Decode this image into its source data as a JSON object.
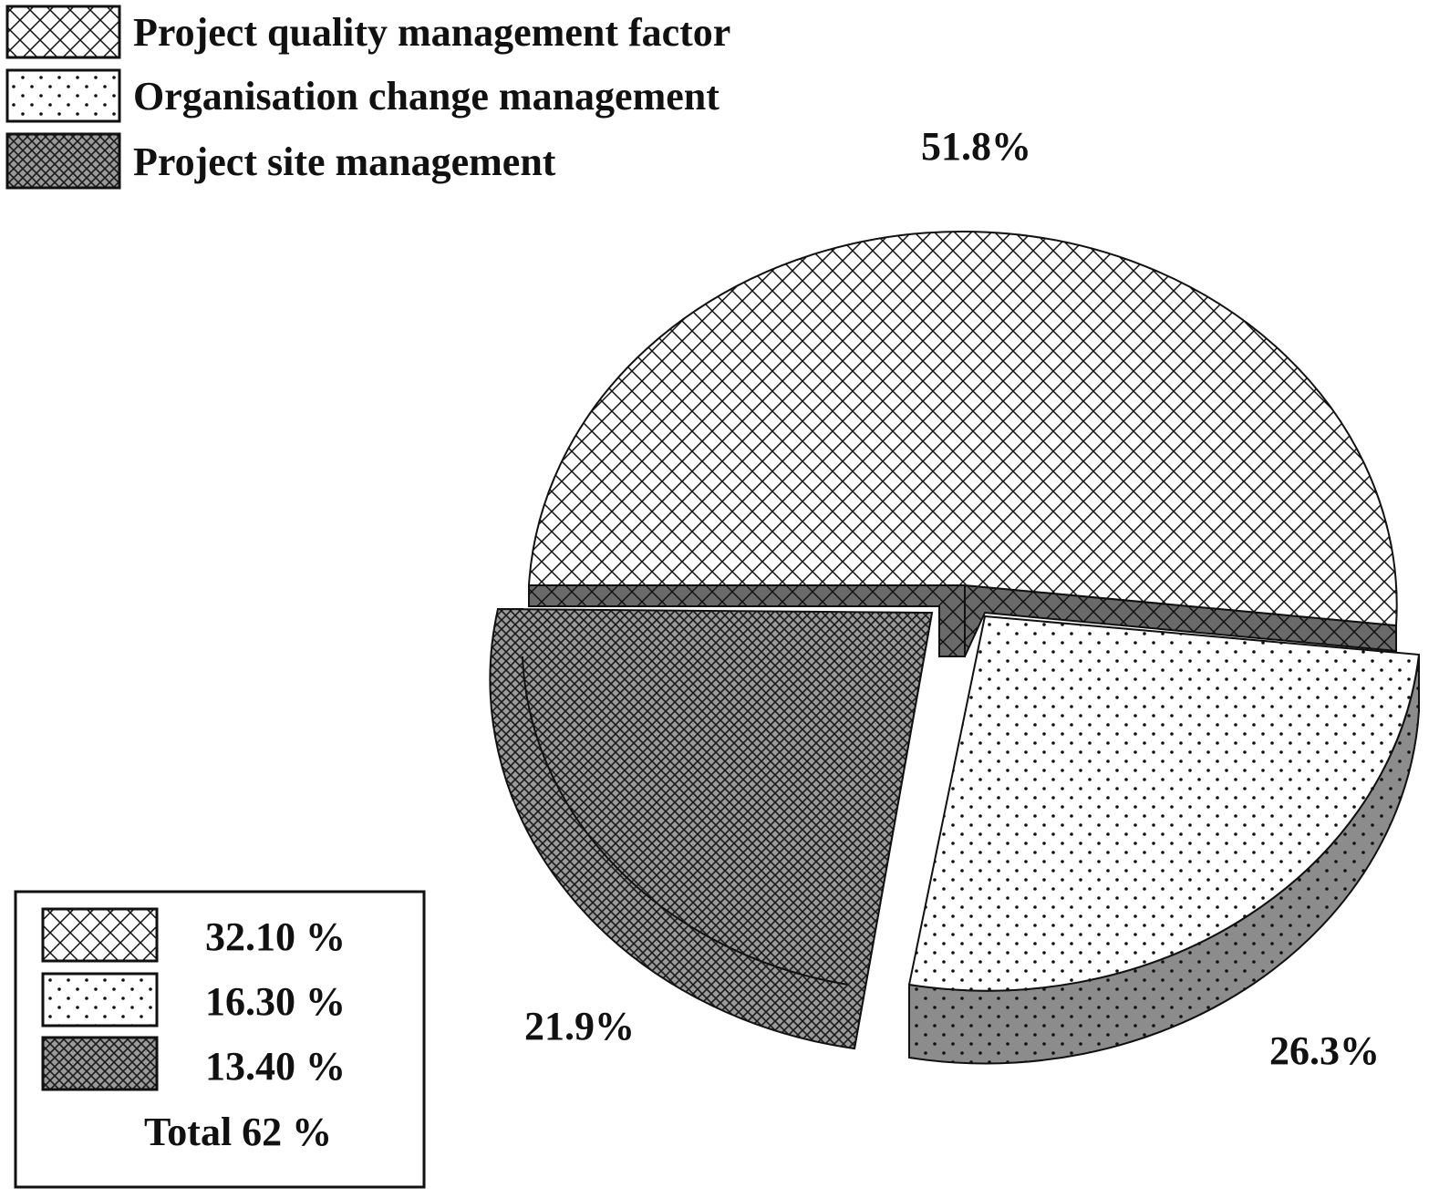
{
  "chart_data": {
    "type": "pie",
    "title": "",
    "slices": [
      {
        "label": "Project quality management factor",
        "value": 51.8,
        "value_label": "51.8%",
        "pattern": "crosshatch",
        "box_value": "32.10 %"
      },
      {
        "label": "Organisation change management",
        "value": 26.3,
        "value_label": "26.3%",
        "pattern": "dots",
        "box_value": "16.30 %"
      },
      {
        "label": "Project site management",
        "value": 21.9,
        "value_label": "21.9%",
        "pattern": "fine-crosshatch",
        "box_value": "13.40 %"
      }
    ],
    "total_label": "Total 62 %",
    "legend_position": "top-left",
    "summary_box_position": "bottom-left"
  },
  "colors": {
    "ink": "#111111",
    "side_dark": "#6a6a6a",
    "side_mid": "#8c8c8c",
    "fine_hatch_bg": "#9a9a9a",
    "background": "#ffffff"
  }
}
